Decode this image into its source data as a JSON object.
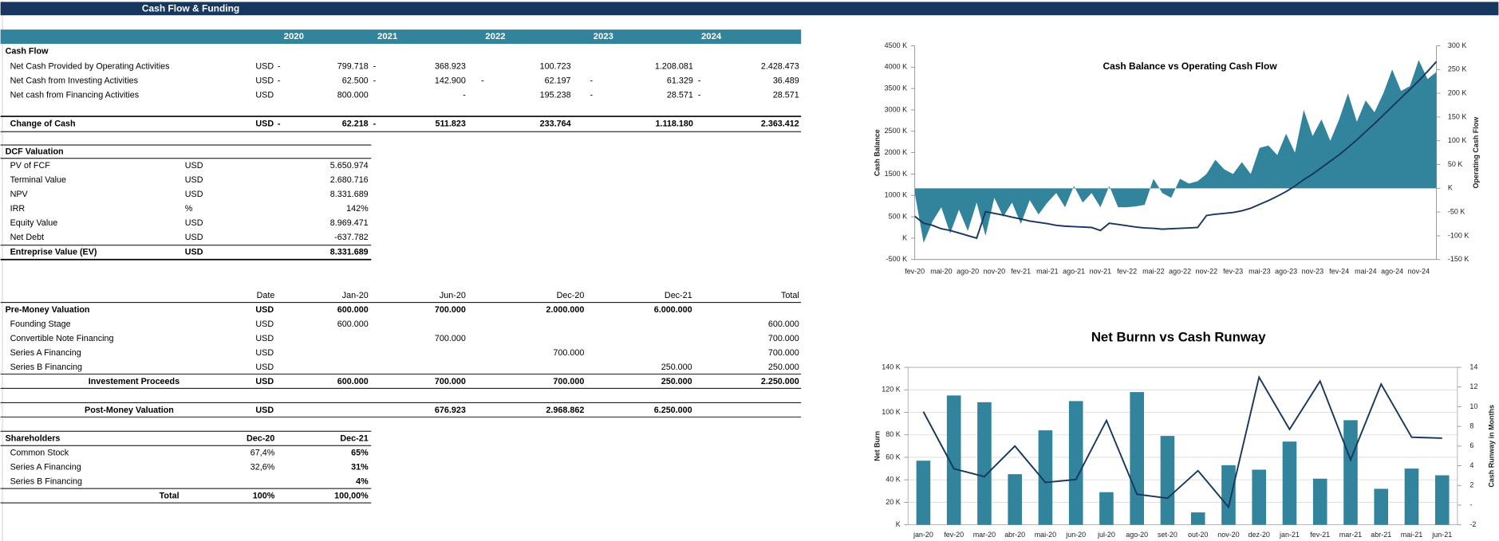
{
  "header": {
    "title": "Cash Flow & Funding"
  },
  "cash_flow": {
    "years": [
      "2020",
      "2021",
      "2022",
      "2023",
      "2024"
    ],
    "title": "Cash Flow",
    "rows": [
      {
        "label": "Net Cash Provided by Operating Activities",
        "cells": [
          "USD",
          "-",
          "799.718",
          "-",
          "368.923",
          null,
          "100.723",
          null,
          "1.208.081",
          null,
          "2.428.473"
        ]
      },
      {
        "label": "Net Cash from Investing Activities",
        "cells": [
          "USD",
          "-",
          "62.500",
          "-",
          "142.900",
          "-",
          "62.197",
          "-",
          "61.329",
          "-",
          "36.489"
        ]
      },
      {
        "label": "Net cash from Financing Activities",
        "cells": [
          "USD",
          null,
          "800.000",
          null,
          "-",
          null,
          "195.238",
          "-",
          "28.571",
          "-",
          "28.571"
        ]
      }
    ],
    "total": {
      "label": "Change of Cash",
      "cells": [
        "USD",
        "-",
        "62.218",
        "-",
        "511.823",
        null,
        "233.764",
        null,
        "1.118.180",
        null,
        "2.363.412"
      ]
    }
  },
  "dcf": {
    "title": "DCF Valuation",
    "rows": [
      {
        "label": "PV of FCF",
        "unit": "USD",
        "value": "5.650.974"
      },
      {
        "label": "Terminal Value",
        "unit": "USD",
        "value": "2.680.716"
      },
      {
        "label": "NPV",
        "unit": "USD",
        "value": "8.331.689"
      },
      {
        "label": "IRR",
        "unit": "%",
        "value": "142%"
      },
      {
        "label": "Equity Value",
        "unit": "USD",
        "value": "8.969.471"
      },
      {
        "label": "Net Debt",
        "unit": "USD",
        "value": "-637.782"
      }
    ],
    "total": {
      "label": "Entreprise Value (EV)",
      "unit": "USD",
      "value": "8.331.689"
    }
  },
  "funding": {
    "columns": [
      "Date",
      "Jan-20",
      "Jun-20",
      "Dec-20",
      "Dec-21",
      "Total"
    ],
    "rows": [
      {
        "label": "Pre-Money Valuation",
        "cells": [
          "USD",
          "600.000",
          "700.000",
          "2.000.000",
          "6.000.000",
          null
        ]
      },
      {
        "label": "Founding Stage",
        "cells": [
          "USD",
          "600.000",
          null,
          null,
          null,
          "600.000"
        ]
      },
      {
        "label": "Convertible Note Financing",
        "cells": [
          "USD",
          null,
          "700.000",
          null,
          null,
          "700.000"
        ]
      },
      {
        "label": "Series A Financing",
        "cells": [
          "USD",
          null,
          null,
          "700.000",
          null,
          "700.000"
        ]
      },
      {
        "label": "Series B Financing",
        "cells": [
          "USD",
          null,
          null,
          null,
          "250.000",
          "250.000"
        ]
      }
    ],
    "proceeds": {
      "label": "Investement Proceeds",
      "cells": [
        "USD",
        "600.000",
        "700.000",
        "700.000",
        "250.000",
        "2.250.000"
      ]
    },
    "post_money": {
      "label": "Post-Money Valuation",
      "cells": [
        "USD",
        null,
        "676.923",
        "2.968.862",
        "6.250.000",
        null
      ]
    }
  },
  "shareholders": {
    "columns": [
      "Shareholders",
      "Dec-20",
      "Dec-21"
    ],
    "rows": [
      {
        "label": "Common Stock",
        "cells": [
          "67,4%",
          "65%"
        ]
      },
      {
        "label": "Series A Financing",
        "cells": [
          "32,6%",
          "31%"
        ]
      },
      {
        "label": "Series B Financing",
        "cells": [
          null,
          "4%"
        ]
      }
    ],
    "total": {
      "label": "Total",
      "cells": [
        "100%",
        "100,00%"
      ]
    }
  },
  "chart_data": [
    {
      "type": "combo",
      "title": "Cash Balance  vs Operating  Cash Flow",
      "ylabel": "Cash Balance",
      "y2label": "Operating Cash Flow",
      "categories": [
        "fev-20",
        null,
        null,
        "mai-20",
        null,
        null,
        "ago-20",
        null,
        null,
        "nov-20",
        null,
        null,
        "fev-21",
        null,
        null,
        "mai-21",
        null,
        null,
        "ago-21",
        null,
        null,
        "nov-21",
        null,
        null,
        "fev-22",
        null,
        null,
        "mai-22",
        null,
        null,
        "ago-22",
        null,
        null,
        "nov-22",
        null,
        null,
        "fev-23",
        null,
        null,
        "mai-23",
        null,
        null,
        "ago-23",
        null,
        null,
        "nov-23",
        null,
        null,
        "fev-24",
        null,
        null,
        "mai-24",
        null,
        null,
        "ago-24",
        null,
        null,
        "nov-24",
        null,
        null
      ],
      "series": [
        {
          "type": "area",
          "axis": "y2",
          "color": "#31849b",
          "values": [
            -10,
            -115,
            -70,
            -40,
            -95,
            -45,
            -90,
            -30,
            -100,
            -20,
            -60,
            -30,
            -75,
            -25,
            -55,
            -30,
            -10,
            -40,
            5,
            -30,
            -10,
            -40,
            5,
            -40,
            -40,
            -38,
            -35,
            20,
            -10,
            -20,
            20,
            10,
            15,
            30,
            60,
            40,
            30,
            55,
            30,
            85,
            90,
            70,
            115,
            75,
            165,
            110,
            145,
            100,
            145,
            200,
            140,
            185,
            160,
            200,
            250,
            205,
            215,
            270,
            230,
            245
          ]
        },
        {
          "type": "line",
          "color": "#17375e",
          "values": [
            510,
            350,
            300,
            220,
            180,
            120,
            60,
            0,
            620,
            580,
            540,
            490,
            450,
            400,
            370,
            340,
            300,
            280,
            270,
            260,
            250,
            180,
            350,
            320,
            290,
            260,
            240,
            230,
            210,
            220,
            230,
            240,
            250,
            530,
            560,
            580,
            600,
            640,
            700,
            790,
            880,
            980,
            1090,
            1220,
            1370,
            1500,
            1650,
            1800,
            1950,
            2120,
            2300,
            2490,
            2680,
            2880,
            3080,
            3280,
            3480,
            3680,
            3900,
            4130
          ]
        }
      ],
      "ylim": [
        -500,
        4500
      ],
      "yticks": [
        {
          "value": -500,
          "label": "-500 K"
        },
        {
          "value": 0,
          "label": "K"
        },
        {
          "value": 500,
          "label": "500 K"
        },
        {
          "value": 1000,
          "label": "1000 K"
        },
        {
          "value": 1500,
          "label": "1500 K"
        },
        {
          "value": 2000,
          "label": "2000 K"
        },
        {
          "value": 2500,
          "label": "2500 K"
        },
        {
          "value": 3000,
          "label": "3000 K"
        },
        {
          "value": 3500,
          "label": "3500 K"
        },
        {
          "value": 4000,
          "label": "4000 K"
        },
        {
          "value": 4500,
          "label": "4500 K"
        }
      ],
      "y2lim": [
        -150,
        300
      ],
      "y2ticks": [
        {
          "value": -150,
          "label": "-150 K"
        },
        {
          "value": -100,
          "label": "-100 K"
        },
        {
          "value": -50,
          "label": "-50 K"
        },
        {
          "value": 0,
          "label": "K"
        },
        {
          "value": 50,
          "label": "50 K"
        },
        {
          "value": 100,
          "label": "100 K"
        },
        {
          "value": 150,
          "label": "150 K"
        },
        {
          "value": 200,
          "label": "200 K"
        },
        {
          "value": 250,
          "label": "250 K"
        },
        {
          "value": 300,
          "label": "300 K"
        }
      ],
      "grid": false
    },
    {
      "type": "combo",
      "title": "Net Burnn vs Cash Runway",
      "ylabel": "Net Burn",
      "y2label": "Cash Runway in Months",
      "categories": [
        "jan-20",
        "fev-20",
        "mar-20",
        "abr-20",
        "mai-20",
        "jun-20",
        "jul-20",
        "ago-20",
        "set-20",
        "out-20",
        "nov-20",
        "dez-20",
        "jan-21",
        "fev-21",
        "mar-21",
        "abr-21",
        "mai-21",
        "jun-21"
      ],
      "series": [
        {
          "type": "bar",
          "color": "#31849b",
          "values": [
            57,
            115,
            109,
            45,
            84,
            110,
            29,
            118,
            79,
            11,
            53,
            49,
            74,
            41,
            93,
            32,
            50,
            44
          ]
        },
        {
          "type": "line",
          "axis": "y2",
          "color": "#17375e",
          "values": [
            9.5,
            3.7,
            2.9,
            6.0,
            2.3,
            2.6,
            8.6,
            1.1,
            0.7,
            3.5,
            -0.2,
            13.0,
            7.7,
            12.6,
            4.6,
            12.3,
            6.9,
            6.8
          ]
        }
      ],
      "ylim": [
        0,
        140
      ],
      "yticks": [
        {
          "value": 0,
          "label": "K"
        },
        {
          "value": 20,
          "label": "20 K"
        },
        {
          "value": 40,
          "label": "40 K"
        },
        {
          "value": 60,
          "label": "60 K"
        },
        {
          "value": 80,
          "label": "80 K"
        },
        {
          "value": 100,
          "label": "100 K"
        },
        {
          "value": 120,
          "label": "120 K"
        },
        {
          "value": 140,
          "label": "140 K"
        }
      ],
      "y2lim": [
        -2,
        14
      ],
      "y2ticks": [
        -2,
        {
          "value": 0,
          "label": "-"
        },
        2,
        4,
        6,
        8,
        10,
        12,
        14
      ],
      "grid": true
    }
  ]
}
